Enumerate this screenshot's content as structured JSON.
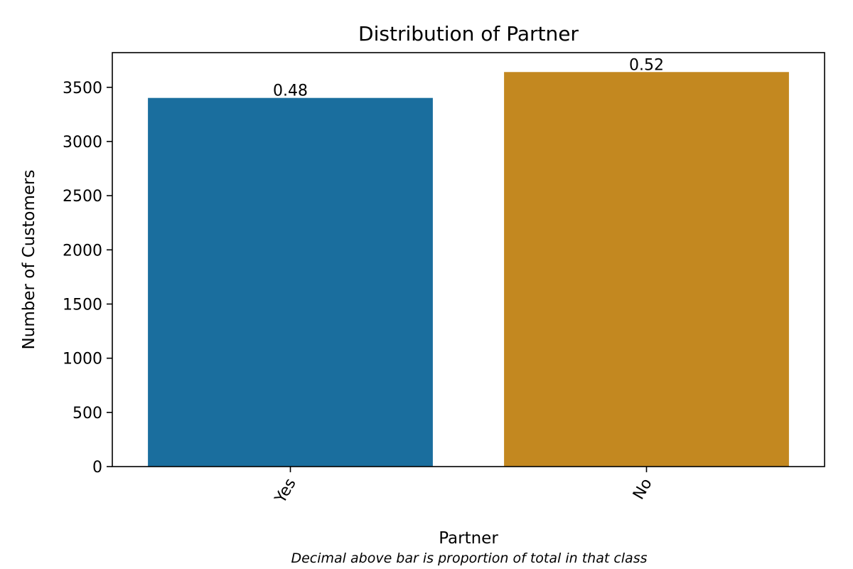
{
  "chart_data": {
    "type": "bar",
    "title": "Distribution of Partner",
    "xlabel": "Partner",
    "ylabel": "Number of Customers",
    "categories": [
      "Yes",
      "No"
    ],
    "values": [
      3402,
      3641
    ],
    "bar_labels": [
      "0.48",
      "0.52"
    ],
    "colors": [
      "#1a6e9e",
      "#c38820"
    ],
    "ylim": [
      0,
      3820
    ],
    "yticks": [
      0,
      500,
      1000,
      1500,
      2000,
      2500,
      3000,
      3500
    ],
    "grid": false,
    "caption": "Decimal above bar is proportion of total in that class"
  }
}
